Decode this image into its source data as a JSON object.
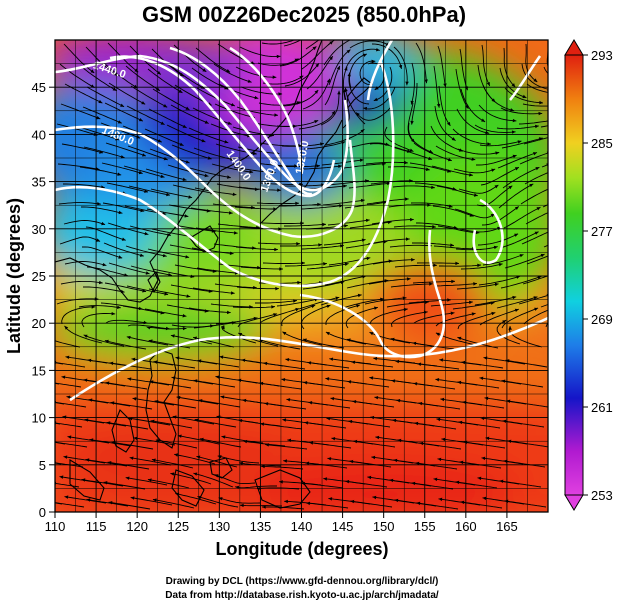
{
  "title": "GSM 00Z26Dec2025 (850.0hPa)",
  "xlabel": "Longitude (degrees)",
  "ylabel": "Latitude  (degrees)",
  "x_ticks": [
    110,
    115,
    120,
    125,
    130,
    135,
    140,
    145,
    150,
    155,
    160,
    165
  ],
  "y_ticks": [
    0,
    5,
    10,
    15,
    20,
    25,
    30,
    35,
    40,
    45
  ],
  "xlim": [
    110,
    170
  ],
  "ylim": [
    0,
    50
  ],
  "colorbar": {
    "min": 253,
    "max": 293,
    "tick_labels": [
      "293",
      "285",
      "277",
      "269",
      "261",
      "253"
    ],
    "tick_values": [
      293,
      285,
      277,
      269,
      261,
      253
    ]
  },
  "contour_labels": [
    {
      "text": "1440.0",
      "lon": 116.5,
      "lat": 46.5
    },
    {
      "text": "1480.0",
      "lon": 117.5,
      "lat": 39.5
    },
    {
      "text": "1400.0",
      "lon": 132.0,
      "lat": 36.5
    },
    {
      "text": "1360.0",
      "lon": 136.5,
      "lat": 35.5
    },
    {
      "text": "1320.0",
      "lon": 140.5,
      "lat": 37.5
    }
  ],
  "credits": {
    "line1": "Drawing by DCL (https://www.gfd-dennou.org/library/dcl/)",
    "line2": "Data from http://database.rish.kyoto-u.ac.jp/arch/jmadata/"
  },
  "chart_data": {
    "type": "heatmap",
    "title": "GSM 00Z26Dec2025 (850.0hPa)",
    "xlabel": "Longitude (degrees)",
    "ylabel": "Latitude  (degrees)",
    "xlim": [
      110,
      170
    ],
    "ylim": [
      0,
      50
    ],
    "colorbar_range": [
      253,
      293
    ],
    "overlays": [
      "streamlines",
      "geopotential-height-contours"
    ],
    "contour_levels": [
      1320,
      1360,
      1400,
      1440,
      1480
    ]
  }
}
